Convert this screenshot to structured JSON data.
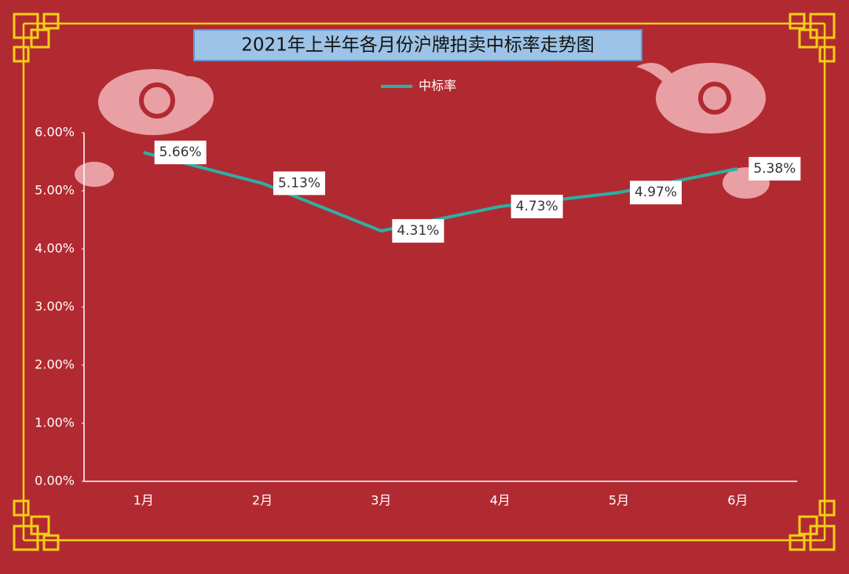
{
  "chart_data": {
    "type": "line",
    "title": "2021年上半年各月份沪牌拍卖中标率走势图",
    "categories": [
      "1月",
      "2月",
      "3月",
      "4月",
      "5月",
      "6月"
    ],
    "series": [
      {
        "name": "中标率",
        "color": "#2bb0a6",
        "values": [
          5.66,
          5.13,
          4.31,
          4.73,
          4.97,
          5.38
        ],
        "value_labels": [
          "5.66%",
          "5.13%",
          "4.31%",
          "4.73%",
          "4.97%",
          "5.38%"
        ]
      }
    ],
    "ylim": [
      0,
      6
    ],
    "yticks": [
      {
        "value": 0,
        "label": "0.00%"
      },
      {
        "value": 1,
        "label": "1.00%"
      },
      {
        "value": 2,
        "label": "2.00%"
      },
      {
        "value": 3,
        "label": "3.00%"
      },
      {
        "value": 4,
        "label": "4.00%"
      },
      {
        "value": 5,
        "label": "5.00%"
      },
      {
        "value": 6,
        "label": "6.00%"
      }
    ],
    "legend": "top"
  }
}
